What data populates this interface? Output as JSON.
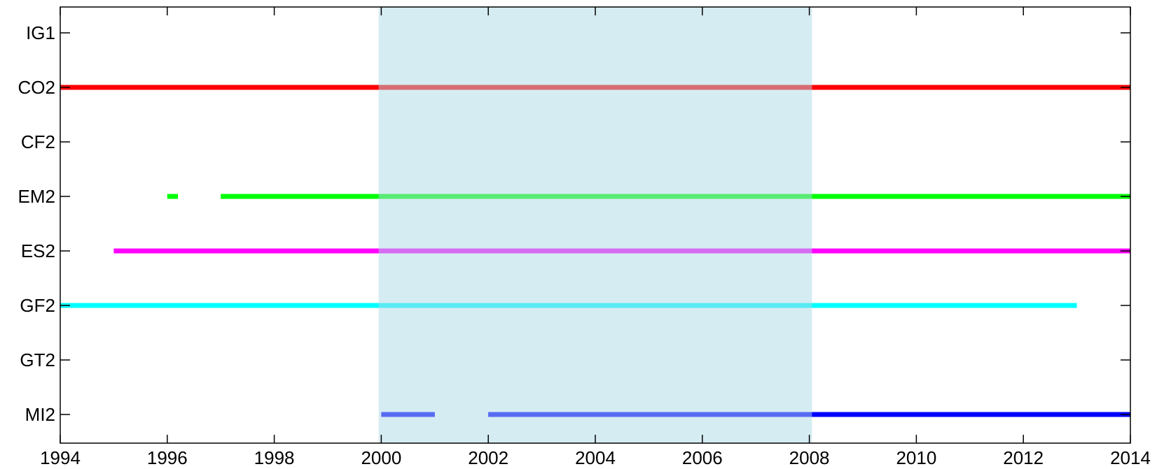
{
  "chart_data": {
    "type": "timeline",
    "title": "",
    "xlabel": "",
    "ylabel": "",
    "xlim": [
      1994,
      2014
    ],
    "x_ticks": [
      "1994",
      "1996",
      "1998",
      "2000",
      "2002",
      "2004",
      "2006",
      "2008",
      "2010",
      "2012",
      "2014"
    ],
    "categories": [
      "IG1",
      "CO2",
      "CF2",
      "EM2",
      "ES2",
      "GF2",
      "GT2",
      "MI2"
    ],
    "highlight_range": [
      1999.95,
      2008.05
    ],
    "highlight_color": "#add8e6",
    "series": [
      {
        "category": "IG1",
        "color": "#000000",
        "segments": []
      },
      {
        "category": "CO2",
        "color": "#ff0000",
        "segments": [
          [
            1994,
            2014
          ]
        ]
      },
      {
        "category": "CF2",
        "color": "#000000",
        "segments": []
      },
      {
        "category": "EM2",
        "color": "#00ff00",
        "segments": [
          [
            1996.0,
            1996.2
          ],
          [
            1997.0,
            2014
          ]
        ]
      },
      {
        "category": "ES2",
        "color": "#ff00ff",
        "segments": [
          [
            1995.0,
            2014
          ]
        ]
      },
      {
        "category": "GF2",
        "color": "#00ffff",
        "segments": [
          [
            1994,
            2013.0
          ]
        ]
      },
      {
        "category": "GT2",
        "color": "#000000",
        "segments": []
      },
      {
        "category": "MI2",
        "color": "#0000ff",
        "segments": [
          [
            2000.0,
            2001.0
          ],
          [
            2002.0,
            2014
          ]
        ]
      }
    ]
  }
}
